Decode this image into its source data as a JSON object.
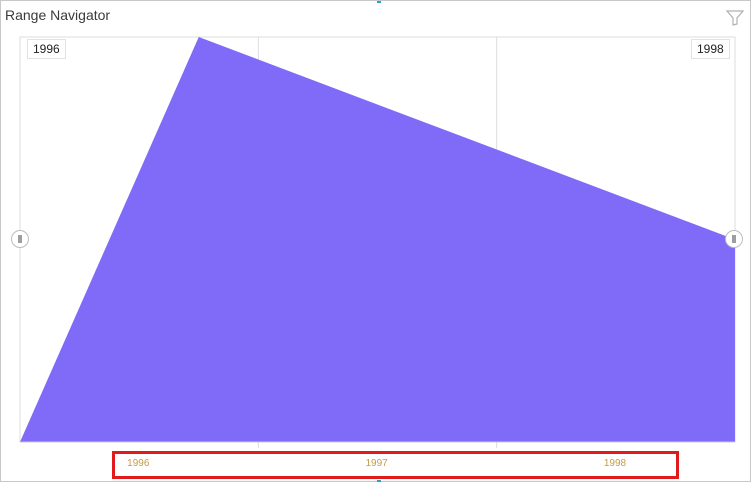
{
  "widget": {
    "title": "Range Navigator",
    "filter_icon": "filter-icon"
  },
  "range": {
    "start_label": "1996",
    "end_label": "1998"
  },
  "colors": {
    "area": "#7f6bf7",
    "grid": "#dcdcdc",
    "axis_label": "#c79a45",
    "highlight": "#e11b1b"
  },
  "chart_data": {
    "type": "area",
    "x": [
      1996,
      1996.5,
      1998
    ],
    "y": [
      0,
      1.0,
      0.5
    ],
    "ylim": [
      0,
      1.0
    ],
    "xlim": [
      1996,
      1998
    ],
    "categories": [
      "1996",
      "1997",
      "1998"
    ],
    "title": "",
    "xlabel": "",
    "ylabel": "",
    "grid": true,
    "legend": "none"
  }
}
